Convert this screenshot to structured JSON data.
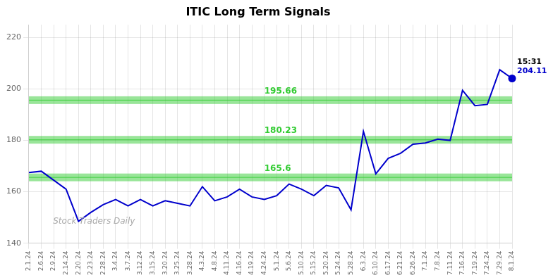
{
  "chart_data": {
    "type": "line",
    "title": "ITIC Long Term Signals",
    "categories": [
      "2.1.24",
      "2.6.24",
      "2.9.24",
      "2.14.24",
      "2.20.24",
      "2.23.24",
      "2.28.24",
      "3.4.24",
      "3.7.24",
      "3.12.24",
      "3.15.24",
      "3.20.24",
      "3.25.24",
      "3.28.24",
      "4.3.24",
      "4.8.24",
      "4.11.24",
      "4.16.24",
      "4.19.24",
      "4.24.24",
      "5.1.24",
      "5.6.24",
      "5.10.24",
      "5.15.24",
      "5.20.24",
      "5.24.24",
      "5.28.24",
      "6.3.24",
      "6.10.24",
      "6.17.24",
      "6.21.24",
      "6.26.24",
      "7.1.24",
      "7.8.24",
      "7.11.24",
      "7.16.24",
      "7.19.24",
      "7.24.24",
      "7.29.24",
      "8.1.24"
    ],
    "values": [
      167.5,
      168.0,
      164.5,
      161.0,
      148.5,
      152.0,
      155.0,
      157.0,
      154.5,
      157.0,
      154.5,
      156.5,
      155.5,
      154.5,
      162.0,
      156.5,
      158.0,
      161.0,
      158.0,
      157.0,
      158.5,
      163.0,
      161.0,
      158.5,
      162.5,
      161.5,
      153.0,
      183.5,
      167.0,
      173.0,
      175.0,
      178.5,
      179.0,
      180.5,
      180.0,
      199.5,
      193.5,
      194.0,
      207.5,
      204.11
    ],
    "color": "#0000cc",
    "hlines": [
      {
        "value": 195.66,
        "label": "195.66",
        "color": "#33cc33"
      },
      {
        "value": 180.23,
        "label": "180.23",
        "color": "#33cc33"
      },
      {
        "value": 165.6,
        "label": "165.6",
        "color": "#33cc33"
      }
    ],
    "hline_band": 1.5,
    "annotations": [
      {
        "text": "15:31",
        "category": "8.1.24",
        "value": 204.11,
        "color": "#000000"
      },
      {
        "text": "204.11",
        "category": "8.1.24",
        "value": 204.11,
        "color": "#0000cc"
      }
    ],
    "watermark": "Stock Traders Daily",
    "ylim": [
      140,
      225
    ],
    "yticks": [
      140,
      160,
      180,
      200,
      220
    ],
    "grid": true
  }
}
